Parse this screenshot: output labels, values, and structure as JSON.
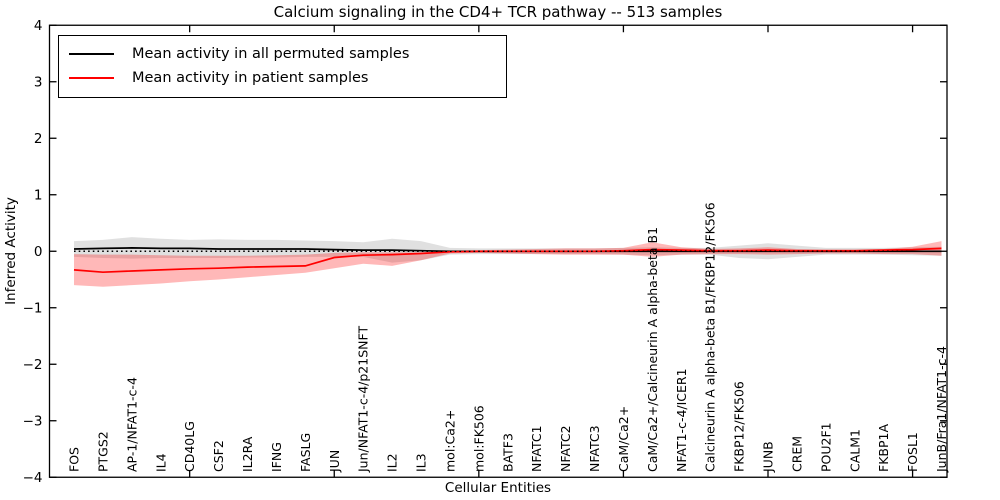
{
  "figure": {
    "title": "Calcium signaling in the CD4+ TCR pathway -- 513 samples",
    "xlabel": "Cellular Entities",
    "ylabel": "Inferred Activity"
  },
  "chart_data": {
    "type": "line",
    "title": "Calcium signaling in the CD4+ TCR pathway -- 513 samples",
    "xlabel": "Cellular Entities",
    "ylabel": "Inferred Activity",
    "ylim": [
      -4,
      4
    ],
    "yticks": [
      -4,
      -3,
      -2,
      -1,
      0,
      1,
      2,
      3,
      4
    ],
    "xtick_mark_indices": [
      4,
      9,
      14,
      19,
      24,
      29
    ],
    "grid": false,
    "legend_position": "upper left",
    "baseline": {
      "value": 0,
      "color": "#000000",
      "style": "dotted"
    },
    "categories": [
      "FOS",
      "PTGS2",
      "AP-1/NFAT1-c-4",
      "IL4",
      "CD40LG",
      "CSF2",
      "IL2RA",
      "IFNG",
      "FASLG",
      "JUN",
      "Jun/NFAT1-c-4/p21SNFT",
      "IL2",
      "IL3",
      "mol:Ca2+",
      "mol:FK506",
      "BATF3",
      "NFATC1",
      "NFATC2",
      "NFATC3",
      "CaM/Ca2+",
      "CaM/Ca2+/Calcineurin A alpha-beta B1",
      "NFAT1-c-4/ICER1",
      "Calcineurin A alpha-beta B1/FKBP12/FK506",
      "FKBP12/FK506",
      "JUNB",
      "CREM",
      "POU2F1",
      "CALM1",
      "FKBP1A",
      "FOSL1",
      "JunB/Fra1/NFAT1-c-4"
    ],
    "series": [
      {
        "name": "Mean activity in all permuted samples",
        "color": "#000000",
        "band_color": "rgba(125,125,125,0.24)",
        "values": [
          0.04,
          0.05,
          0.06,
          0.05,
          0.05,
          0.04,
          0.04,
          0.04,
          0.04,
          0.03,
          0.02,
          0.02,
          0.01,
          0.0,
          0.0,
          0.0,
          0.0,
          0.0,
          0.0,
          0.0,
          0.0,
          0.0,
          0.0,
          0.0,
          0.0,
          0.0,
          0.0,
          0.0,
          0.0,
          0.0,
          0.0
        ],
        "band_upper": [
          0.18,
          0.2,
          0.25,
          0.22,
          0.2,
          0.21,
          0.2,
          0.2,
          0.19,
          0.18,
          0.16,
          0.22,
          0.18,
          0.06,
          0.05,
          0.05,
          0.05,
          0.05,
          0.05,
          0.06,
          0.07,
          0.06,
          0.06,
          0.1,
          0.14,
          0.1,
          0.06,
          0.06,
          0.06,
          0.07,
          0.08
        ],
        "band_lower": [
          -0.1,
          -0.12,
          -0.13,
          -0.12,
          -0.12,
          -0.12,
          -0.11,
          -0.11,
          -0.1,
          -0.1,
          -0.1,
          -0.2,
          -0.16,
          -0.06,
          -0.05,
          -0.05,
          -0.05,
          -0.05,
          -0.05,
          -0.06,
          -0.07,
          -0.06,
          -0.06,
          -0.12,
          -0.14,
          -0.1,
          -0.06,
          -0.06,
          -0.06,
          -0.07,
          -0.08
        ]
      },
      {
        "name": "Mean activity in patient samples",
        "color": "#ff0000",
        "band_color": "rgba(255,0,0,0.28)",
        "values": [
          -0.33,
          -0.37,
          -0.35,
          -0.33,
          -0.31,
          -0.3,
          -0.28,
          -0.27,
          -0.26,
          -0.11,
          -0.07,
          -0.06,
          -0.04,
          -0.01,
          0.0,
          0.0,
          0.0,
          0.0,
          0.0,
          0.01,
          0.03,
          0.02,
          0.01,
          0.01,
          0.02,
          0.01,
          0.01,
          0.01,
          0.02,
          0.03,
          0.05
        ],
        "band_upper": [
          -0.05,
          -0.06,
          -0.06,
          -0.07,
          -0.08,
          -0.08,
          -0.08,
          -0.07,
          -0.06,
          -0.03,
          -0.02,
          -0.02,
          -0.02,
          0.01,
          0.02,
          0.03,
          0.04,
          0.05,
          0.05,
          0.06,
          0.16,
          0.07,
          0.04,
          0.05,
          0.07,
          0.04,
          0.03,
          0.03,
          0.04,
          0.08,
          0.18
        ],
        "band_lower": [
          -0.6,
          -0.63,
          -0.6,
          -0.57,
          -0.53,
          -0.5,
          -0.46,
          -0.42,
          -0.38,
          -0.3,
          -0.22,
          -0.26,
          -0.16,
          -0.04,
          -0.03,
          -0.04,
          -0.05,
          -0.06,
          -0.06,
          -0.06,
          -0.1,
          -0.06,
          -0.05,
          -0.05,
          -0.06,
          -0.05,
          -0.04,
          -0.04,
          -0.05,
          -0.05,
          -0.08
        ]
      }
    ]
  }
}
